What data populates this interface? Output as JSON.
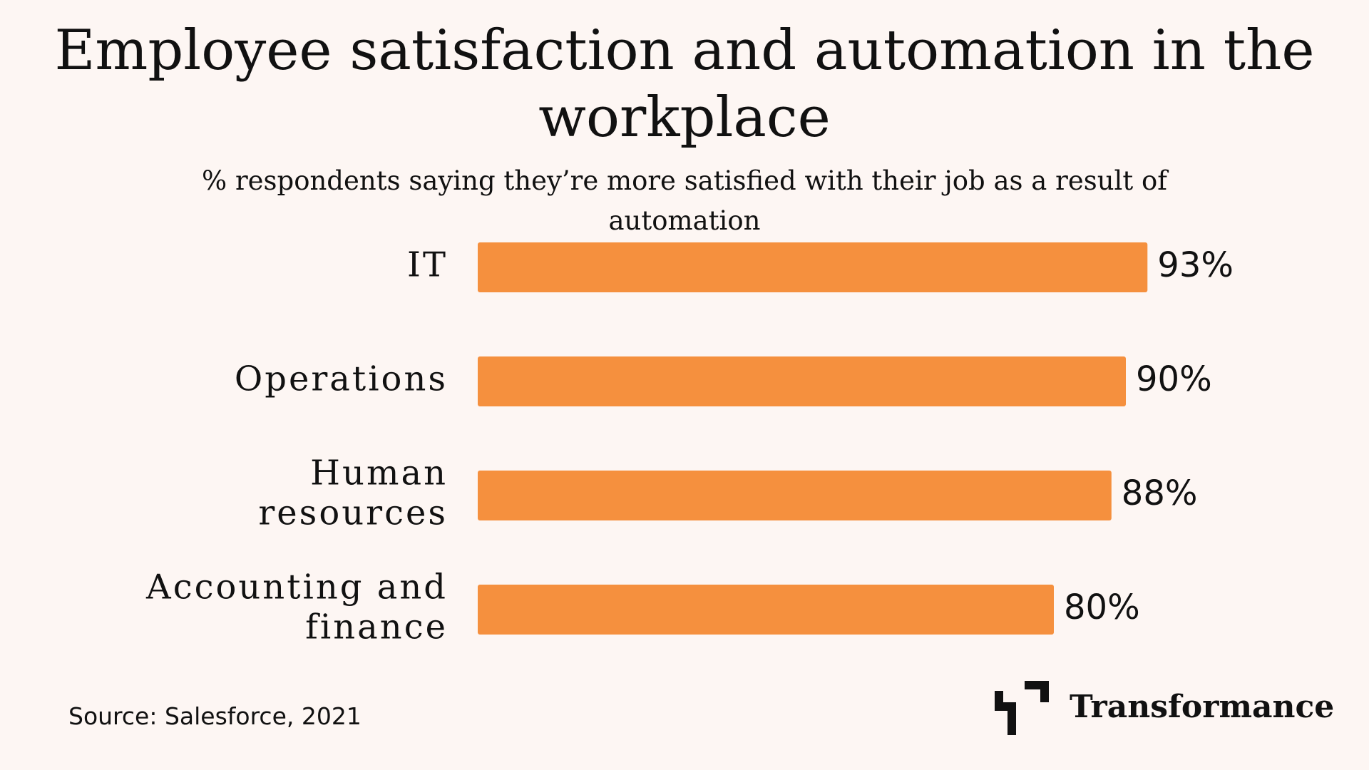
{
  "chart_data": {
    "type": "bar",
    "orientation": "horizontal",
    "title": "Employee satisfaction and automation in the workplace",
    "subtitle": "% respondents saying they’re more satisfied with their job as a result of automation",
    "categories": [
      [
        "IT"
      ],
      [
        "Operations"
      ],
      [
        "Human",
        "resources"
      ],
      [
        "Accounting and",
        "finance"
      ]
    ],
    "values": [
      93,
      90,
      88,
      80
    ],
    "value_labels": [
      "93%",
      "90%",
      "88%",
      "80%"
    ],
    "unit": "%",
    "xlim": [
      0,
      100
    ],
    "grid": false,
    "legend": "none",
    "bar_color": "#f5903e"
  },
  "footer": {
    "source": "Source: Salesforce, 2021",
    "brand": "Transformance"
  },
  "colors": {
    "background": "#fdf6f3",
    "text": "#111111",
    "accent": "#f5903e"
  }
}
